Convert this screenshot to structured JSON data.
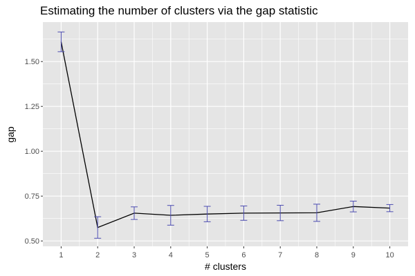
{
  "chart_data": {
    "type": "line",
    "title": "Estimating the number of clusters via the gap statistic",
    "xlabel": "# clusters",
    "ylabel": "gap",
    "x": [
      1,
      2,
      3,
      4,
      5,
      6,
      7,
      8,
      9,
      10
    ],
    "x_ticks": [
      "1",
      "2",
      "3",
      "4",
      "5",
      "6",
      "7",
      "8",
      "9",
      "10"
    ],
    "y_ticks": [
      0.5,
      0.75,
      1.0,
      1.25,
      1.5
    ],
    "y_tick_labels": [
      "0.50",
      "0.75",
      "1.00",
      "1.25",
      "1.50"
    ],
    "xlim": [
      0.5,
      10.5
    ],
    "ylim": [
      0.47,
      1.72
    ],
    "grid": true,
    "series": [
      {
        "values": [
          1.61,
          0.575,
          0.655,
          0.643,
          0.65,
          0.655,
          0.656,
          0.657,
          0.692,
          0.683
        ],
        "error": [
          0.055,
          0.06,
          0.035,
          0.055,
          0.043,
          0.04,
          0.043,
          0.048,
          0.03,
          0.02
        ],
        "line_color": "#000000",
        "errorbar_color": "#4b4bb0"
      }
    ],
    "panel_background": "#e5e5e5",
    "gridline_color": "#ffffff"
  }
}
